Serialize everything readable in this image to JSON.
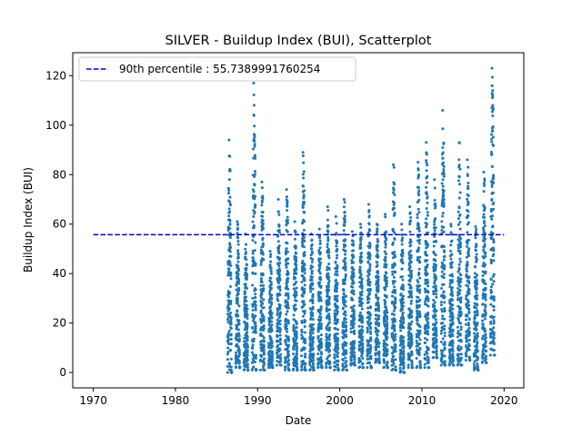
{
  "chart_data": {
    "type": "scatter",
    "title": "SILVER - Buildup Index (BUI), Scatterplot",
    "xlabel": "Date",
    "ylabel": "Buildup Index (BUI)",
    "xlim": [
      1967.5,
      2022.4
    ],
    "ylim": [
      -6.2,
      129.3
    ],
    "x_ticks": [
      1970,
      1980,
      1990,
      2000,
      2010,
      2020
    ],
    "y_ticks": [
      0,
      20,
      40,
      60,
      80,
      100,
      120
    ],
    "grid": false,
    "legend": {
      "placement": "upper left",
      "entries": [
        "90th percentile : 55.7389991760254"
      ]
    },
    "series": [
      {
        "style": "points",
        "color": "#1f77b4",
        "seasons": [
          {
            "start": 1986.35,
            "end": 1986.85,
            "min": 0,
            "max": 94
          },
          {
            "start": 1987.35,
            "end": 1987.85,
            "min": 2,
            "max": 61
          },
          {
            "start": 1988.35,
            "end": 1988.85,
            "min": 1,
            "max": 56
          },
          {
            "start": 1989.35,
            "end": 1989.85,
            "min": 1,
            "max": 117
          },
          {
            "start": 1990.35,
            "end": 1990.85,
            "min": 1,
            "max": 77
          },
          {
            "start": 1991.35,
            "end": 1991.85,
            "min": 2,
            "max": 49
          },
          {
            "start": 1992.35,
            "end": 1992.85,
            "min": 3,
            "max": 70
          },
          {
            "start": 1993.35,
            "end": 1993.85,
            "min": 1,
            "max": 74
          },
          {
            "start": 1994.35,
            "end": 1994.85,
            "min": 1,
            "max": 61
          },
          {
            "start": 1995.35,
            "end": 1995.85,
            "min": 1,
            "max": 89
          },
          {
            "start": 1996.35,
            "end": 1996.85,
            "min": 1,
            "max": 56
          },
          {
            "start": 1997.35,
            "end": 1997.85,
            "min": 2,
            "max": 58
          },
          {
            "start": 1998.35,
            "end": 1998.85,
            "min": 2,
            "max": 67
          },
          {
            "start": 1999.35,
            "end": 1999.85,
            "min": 1,
            "max": 63
          },
          {
            "start": 2000.35,
            "end": 2000.85,
            "min": 1,
            "max": 70
          },
          {
            "start": 2001.35,
            "end": 2001.85,
            "min": 3,
            "max": 57
          },
          {
            "start": 2002.35,
            "end": 2002.85,
            "min": 2,
            "max": 60
          },
          {
            "start": 2003.35,
            "end": 2003.85,
            "min": 2,
            "max": 68
          },
          {
            "start": 2004.35,
            "end": 2004.85,
            "min": 4,
            "max": 60
          },
          {
            "start": 2005.35,
            "end": 2005.85,
            "min": 2,
            "max": 64
          },
          {
            "start": 2006.35,
            "end": 2006.85,
            "min": 1,
            "max": 84
          },
          {
            "start": 2007.35,
            "end": 2007.85,
            "min": 0,
            "max": 60
          },
          {
            "start": 2008.35,
            "end": 2008.85,
            "min": 2,
            "max": 67
          },
          {
            "start": 2009.35,
            "end": 2009.85,
            "min": 2,
            "max": 85
          },
          {
            "start": 2010.35,
            "end": 2010.85,
            "min": 2,
            "max": 93
          },
          {
            "start": 2011.35,
            "end": 2011.85,
            "min": 6,
            "max": 78
          },
          {
            "start": 2012.35,
            "end": 2012.85,
            "min": 3,
            "max": 106
          },
          {
            "start": 2013.35,
            "end": 2013.85,
            "min": 3,
            "max": 60
          },
          {
            "start": 2014.35,
            "end": 2014.85,
            "min": 3,
            "max": 93
          },
          {
            "start": 2015.35,
            "end": 2015.85,
            "min": 5,
            "max": 86
          },
          {
            "start": 2016.35,
            "end": 2016.85,
            "min": 1,
            "max": 59
          },
          {
            "start": 2017.35,
            "end": 2017.85,
            "min": 4,
            "max": 81
          },
          {
            "start": 2018.35,
            "end": 2018.85,
            "min": 7,
            "max": 123
          }
        ]
      },
      {
        "name": "90th percentile : 55.7389991760254",
        "style": "dashed-line",
        "color": "#0000cc",
        "x": [
          1970,
          2020
        ],
        "y": [
          55.7389991760254,
          55.7389991760254
        ]
      }
    ]
  }
}
